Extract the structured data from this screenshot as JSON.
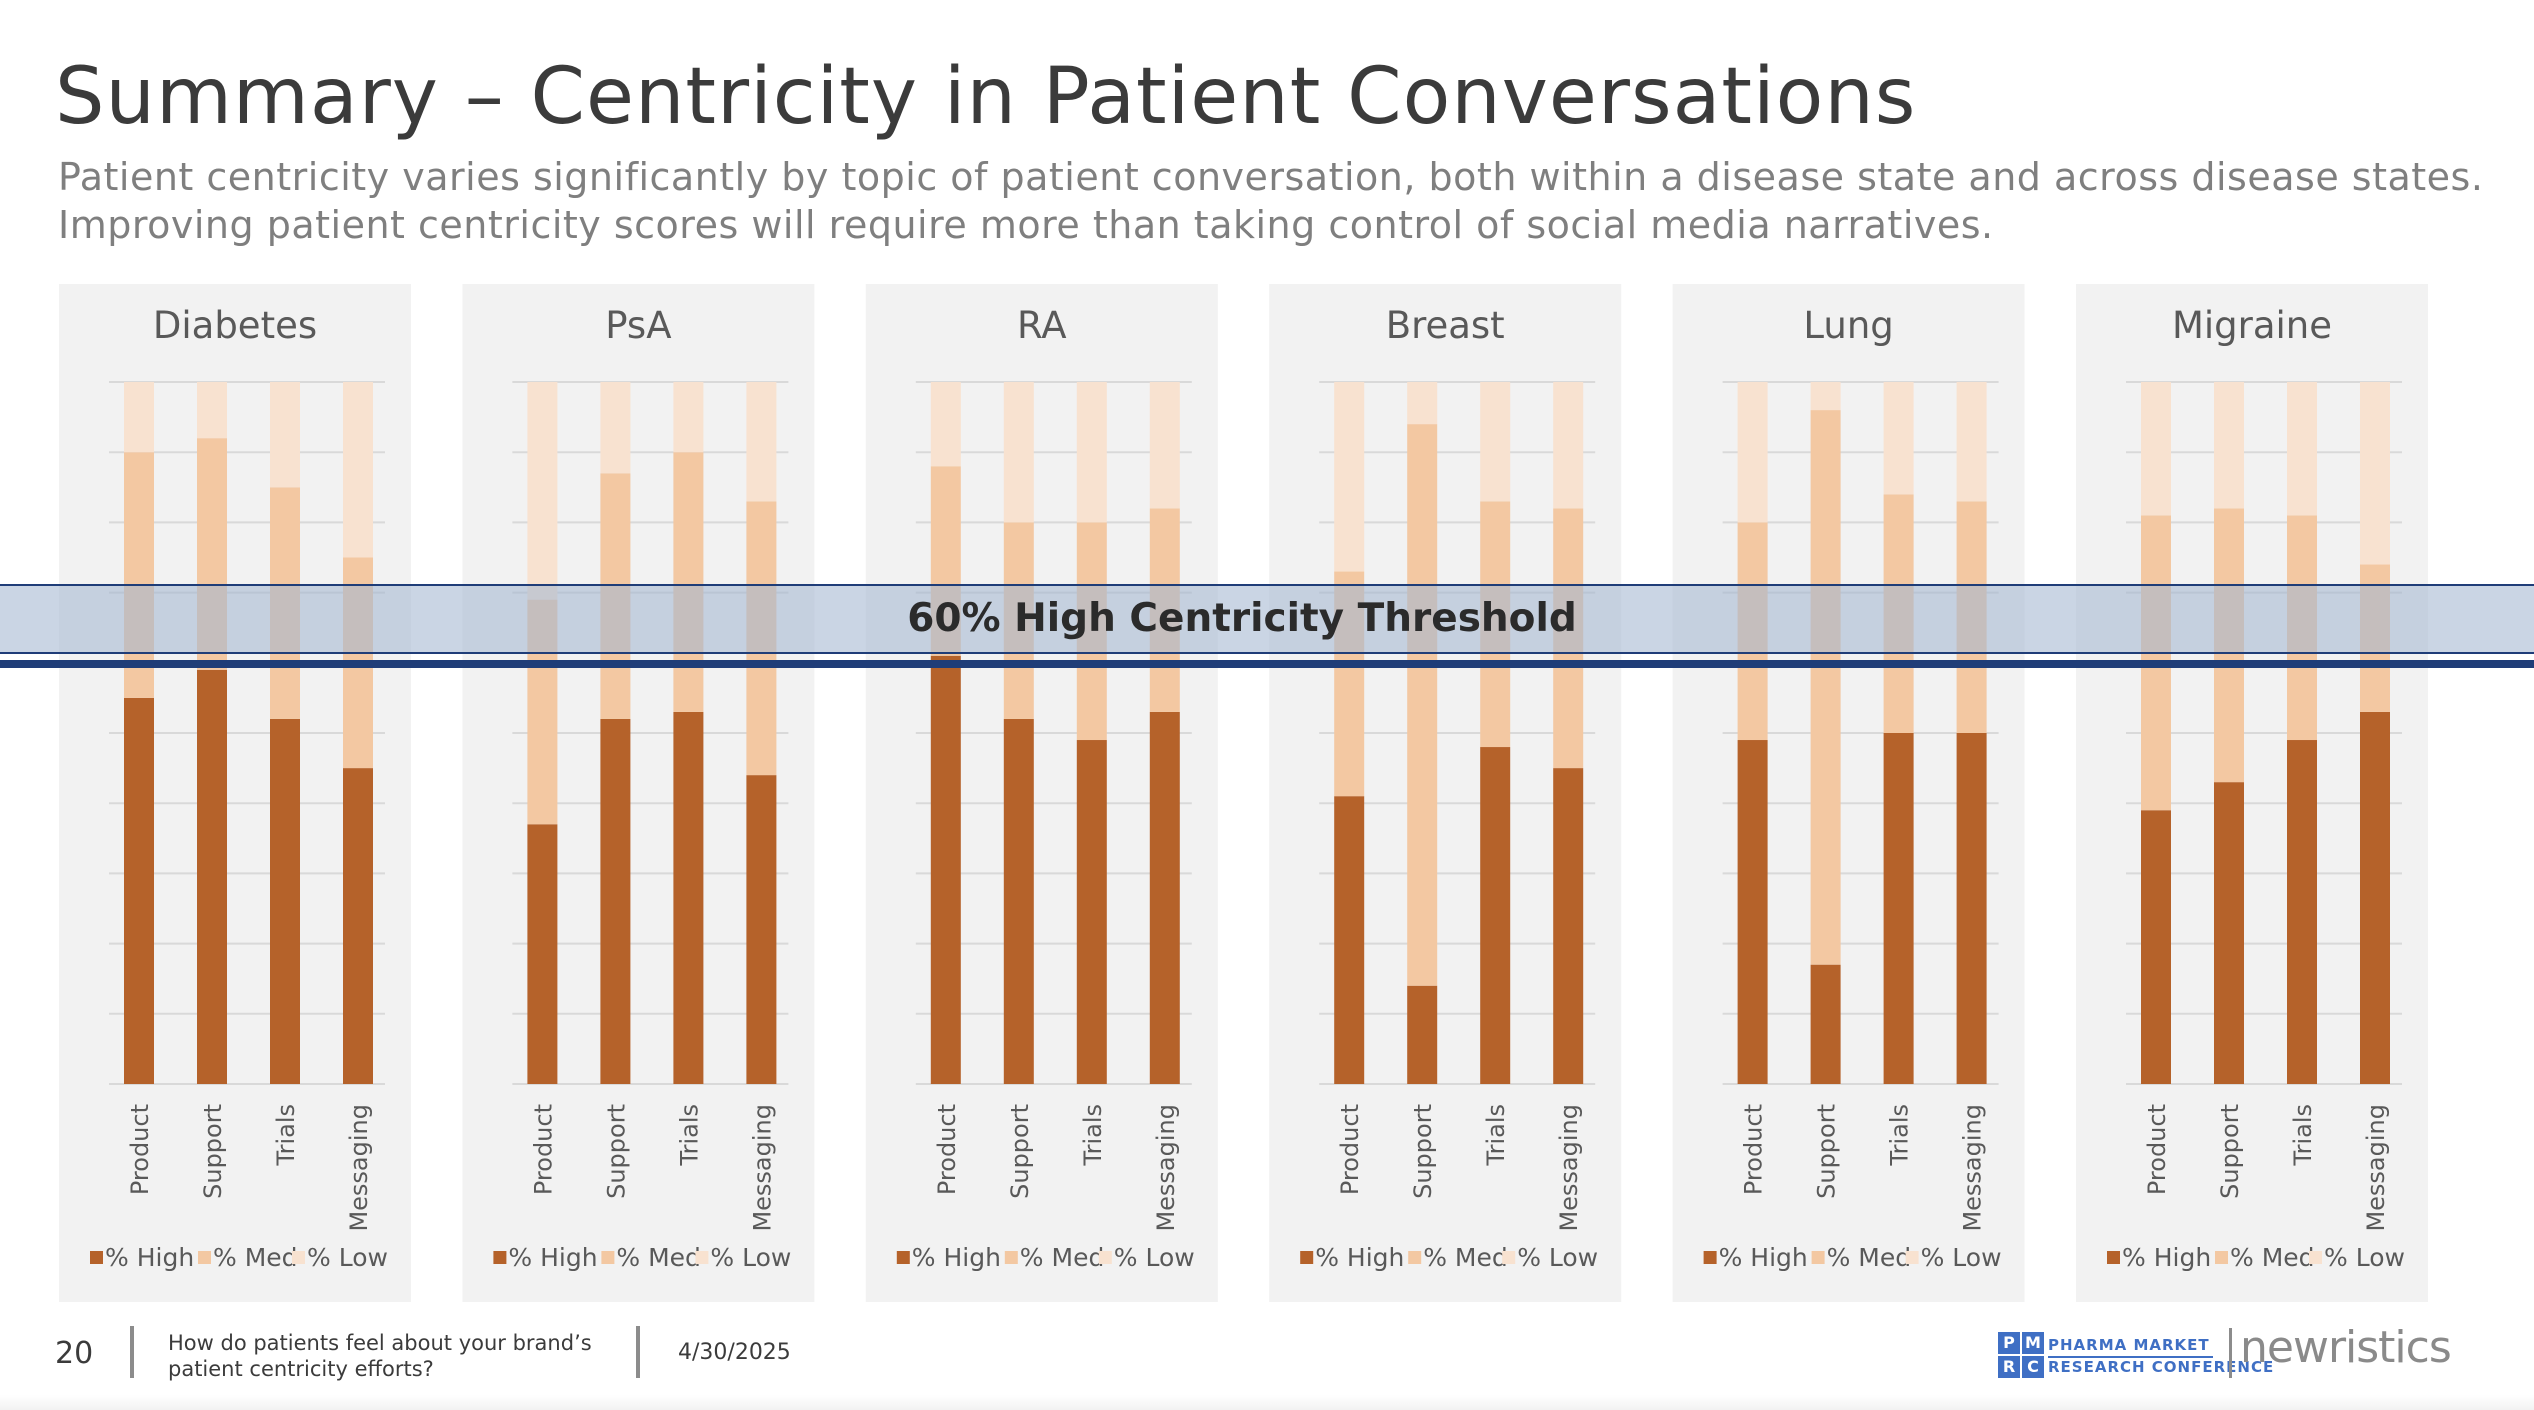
{
  "title": "Summary – Centricity in Patient Conversations",
  "subtitle_line1": "Patient centricity varies significantly by topic of patient conversation, both within a disease state and across disease states.",
  "subtitle_line2": "Improving patient centricity scores will require more than taking control of social media narratives.",
  "threshold": {
    "label": "60% High Centricity Threshold",
    "value": 60
  },
  "colors": {
    "high": "#b5622a",
    "med": "#f3c8a2",
    "low": "#f8e2d0",
    "panel": "#f2f2f2",
    "threshold": "#1f3d78"
  },
  "chart_data": [
    {
      "type": "bar",
      "stacked": true,
      "title": "Diabetes",
      "categories": [
        "Product",
        "Support",
        "Trials",
        "Messaging"
      ],
      "series": [
        {
          "name": "% High",
          "values": [
            55,
            59,
            52,
            45
          ]
        },
        {
          "name": "% Med",
          "values": [
            35,
            33,
            33,
            30
          ]
        },
        {
          "name": "% Low",
          "values": [
            10,
            8,
            15,
            25
          ]
        }
      ],
      "ylim": [
        0,
        100
      ],
      "legend": "bottom"
    },
    {
      "type": "bar",
      "stacked": true,
      "title": "PsA",
      "categories": [
        "Product",
        "Support",
        "Trials",
        "Messaging"
      ],
      "series": [
        {
          "name": "% High",
          "values": [
            37,
            52,
            53,
            44
          ]
        },
        {
          "name": "% Med",
          "values": [
            32,
            35,
            37,
            39
          ]
        },
        {
          "name": "% Low",
          "values": [
            31,
            13,
            10,
            17
          ]
        }
      ],
      "ylim": [
        0,
        100
      ],
      "legend": "bottom"
    },
    {
      "type": "bar",
      "stacked": true,
      "title": "RA",
      "categories": [
        "Product",
        "Support",
        "Trials",
        "Messaging"
      ],
      "series": [
        {
          "name": "% High",
          "values": [
            61,
            52,
            49,
            53
          ]
        },
        {
          "name": "% Med",
          "values": [
            27,
            28,
            31,
            29
          ]
        },
        {
          "name": "% Low",
          "values": [
            12,
            20,
            20,
            18
          ]
        }
      ],
      "ylim": [
        0,
        100
      ],
      "legend": "bottom"
    },
    {
      "type": "bar",
      "stacked": true,
      "title": "Breast",
      "categories": [
        "Product",
        "Support",
        "Trials",
        "Messaging"
      ],
      "series": [
        {
          "name": "% High",
          "values": [
            41,
            14,
            48,
            45
          ]
        },
        {
          "name": "% Med",
          "values": [
            32,
            80,
            35,
            37
          ]
        },
        {
          "name": "% Low",
          "values": [
            27,
            6,
            17,
            18
          ]
        }
      ],
      "ylim": [
        0,
        100
      ],
      "legend": "bottom"
    },
    {
      "type": "bar",
      "stacked": true,
      "title": "Lung",
      "categories": [
        "Product",
        "Support",
        "Trials",
        "Messaging"
      ],
      "series": [
        {
          "name": "% High",
          "values": [
            49,
            17,
            50,
            50
          ]
        },
        {
          "name": "% Med",
          "values": [
            31,
            79,
            34,
            33
          ]
        },
        {
          "name": "% Low",
          "values": [
            20,
            4,
            16,
            17
          ]
        }
      ],
      "ylim": [
        0,
        100
      ],
      "legend": "bottom"
    },
    {
      "type": "bar",
      "stacked": true,
      "title": "Migraine",
      "categories": [
        "Product",
        "Support",
        "Trials",
        "Messaging"
      ],
      "series": [
        {
          "name": "% High",
          "values": [
            39,
            43,
            49,
            53
          ]
        },
        {
          "name": "% Med",
          "values": [
            42,
            39,
            32,
            21
          ]
        },
        {
          "name": "% Low",
          "values": [
            19,
            18,
            19,
            26
          ]
        }
      ],
      "ylim": [
        0,
        100
      ],
      "legend": "bottom"
    }
  ],
  "footer": {
    "page_number": "20",
    "question_line1": "How do patients feel about your brand’s",
    "question_line2": "patient centricity efforts?",
    "date": "4/30/2025"
  },
  "logos": {
    "pmrc_letters": [
      "P",
      "M",
      "R",
      "C"
    ],
    "pmrc_line1": "PHARMA MARKET",
    "pmrc_line2": "RESEARCH CONFERENCE",
    "newristics": "newristics"
  }
}
